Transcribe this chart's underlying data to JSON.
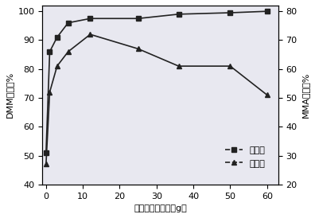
{
  "x": [
    0,
    1,
    3,
    6,
    12,
    25,
    36,
    50,
    60
  ],
  "conversion": [
    51,
    86,
    91,
    96,
    97.5,
    97.5,
    99,
    99.5,
    100
  ],
  "selectivity_right": [
    27,
    52,
    61,
    66,
    72,
    67,
    61,
    61,
    51
  ],
  "xlabel": "多聚甲醆加入量（g）",
  "ylabel_left": "DMM转化率%",
  "ylabel_right": "MMA选择性%",
  "legend_conversion": "转化率",
  "legend_selectivity": "选择性",
  "xlim": [
    -1,
    63
  ],
  "ylim_left": [
    40,
    102
  ],
  "ylim_right": [
    20,
    82
  ],
  "xticks": [
    0,
    10,
    20,
    30,
    40,
    50,
    60
  ],
  "yticks_left": [
    40,
    50,
    60,
    70,
    80,
    90,
    100
  ],
  "yticks_right": [
    20,
    30,
    40,
    50,
    60,
    70,
    80
  ],
  "line_color": "#222222",
  "marker_square": "s",
  "marker_triangle": "^",
  "markersize": 5,
  "linewidth": 1.2,
  "bg_color": "#e8e8f0"
}
